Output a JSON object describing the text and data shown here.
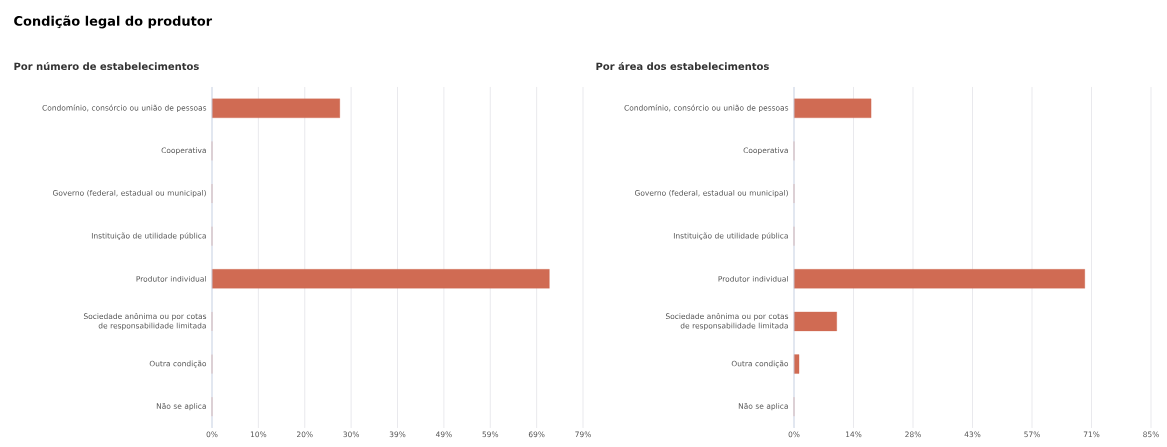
{
  "chart_data": [
    {
      "type": "bar",
      "orientation": "horizontal",
      "title": "Condição legal do produtor",
      "subtitle": "Por número de estabelecimentos",
      "categories": [
        "Condomínio, consórcio ou união de pessoas",
        "Cooperativa",
        "Governo (federal, estadual ou municipal)",
        "Instituição de utilidade pública",
        "Produtor individual",
        "Sociedade anônima ou por cotas de responsabilidade limitada",
        "Outra condição",
        "Não se aplica"
      ],
      "values": [
        27.2,
        0,
        0,
        0,
        71.8,
        0,
        0,
        0
      ],
      "color": "#d06b53",
      "xlim": [
        0,
        78.96
      ],
      "xticks": [
        {
          "value": 0,
          "label": "0%"
        },
        {
          "value": 9.87,
          "label": "10%"
        },
        {
          "value": 19.74,
          "label": "20%"
        },
        {
          "value": 29.61,
          "label": "30%"
        },
        {
          "value": 39.48,
          "label": "39%"
        },
        {
          "value": 49.35,
          "label": "49%"
        },
        {
          "value": 59.22,
          "label": "59%"
        },
        {
          "value": 69.09,
          "label": "69%"
        },
        {
          "value": 78.96,
          "label": "79%"
        }
      ],
      "grid": "x"
    },
    {
      "type": "bar",
      "orientation": "horizontal",
      "subtitle": "Por área dos estabelecimentos",
      "categories": [
        "Condomínio, consórcio ou união de pessoas",
        "Cooperativa",
        "Governo (federal, estadual ou municipal)",
        "Instituição de utilidade pública",
        "Produtor individual",
        "Sociedade anônima ou por cotas de responsabilidade limitada",
        "Outra condição",
        "Não se aplica"
      ],
      "values": [
        18.4,
        0,
        0,
        0,
        69.4,
        10.2,
        1.2,
        0
      ],
      "color": "#d06b53",
      "xlim": [
        0,
        85.2
      ],
      "xticks": [
        {
          "value": 0,
          "label": "0%"
        },
        {
          "value": 14.2,
          "label": "14%"
        },
        {
          "value": 28.4,
          "label": "28%"
        },
        {
          "value": 42.6,
          "label": "43%"
        },
        {
          "value": 56.8,
          "label": "57%"
        },
        {
          "value": 71.0,
          "label": "71%"
        },
        {
          "value": 85.2,
          "label": "85%"
        }
      ],
      "grid": "x"
    }
  ]
}
